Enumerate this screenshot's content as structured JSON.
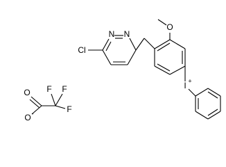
{
  "atoms": [
    {
      "label": "N"
    },
    {
      "label": "N"
    },
    {
      "label": "Cl"
    },
    {
      "label": "O"
    },
    {
      "label": "I",
      "charge": "+"
    },
    {
      "label": "O"
    },
    {
      "label": "O",
      "charge": "-"
    },
    {
      "label": "F"
    },
    {
      "label": "F"
    },
    {
      "label": "F"
    }
  ]
}
